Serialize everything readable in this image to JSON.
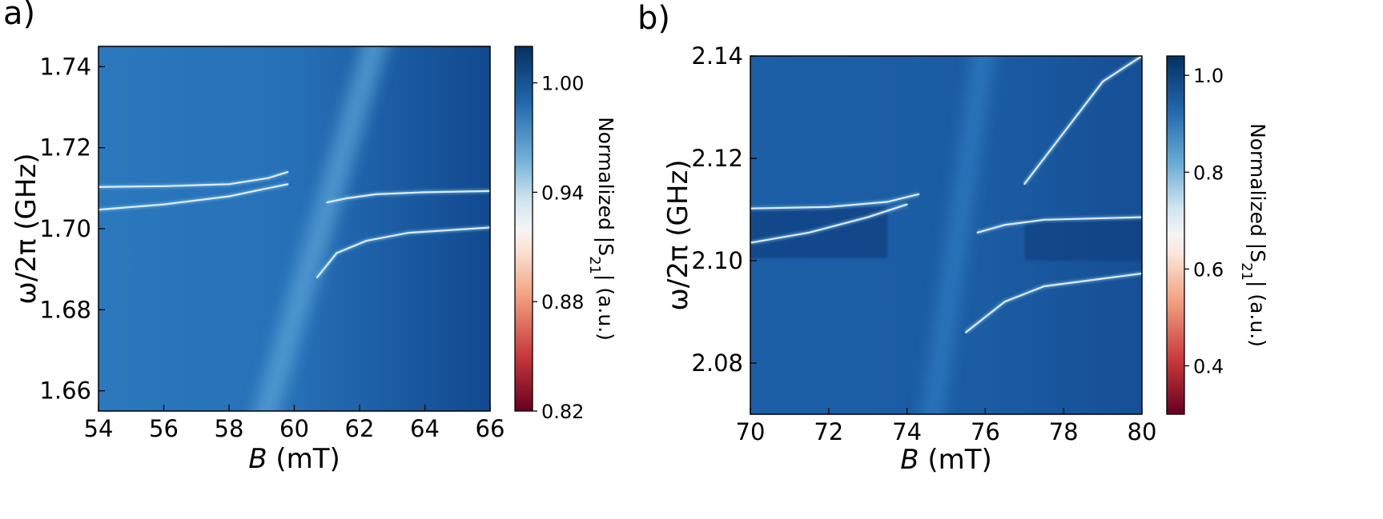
{
  "chart_data": [
    {
      "type": "heatmap",
      "panel_label": "a)",
      "xlabel_sym": "B",
      "xlabel_unit": " (mT)",
      "ylabel": "ω/2π (GHz)",
      "xlim": [
        54,
        66
      ],
      "ylim": [
        1.655,
        1.745
      ],
      "xticks": [
        "54",
        "56",
        "58",
        "60",
        "62",
        "64",
        "66"
      ],
      "xtick_values": [
        54,
        56,
        58,
        60,
        62,
        64,
        66
      ],
      "yticks": [
        "1.66",
        "1.68",
        "1.70",
        "1.72",
        "1.74"
      ],
      "ytick_values": [
        1.66,
        1.68,
        1.7,
        1.72,
        1.74
      ],
      "colorbar": {
        "label_prefix": "Normalized |S",
        "label_sub": "21",
        "label_suffix": "| (a.u.)",
        "range": [
          0.82,
          1.02
        ],
        "ticks": [
          "0.82",
          "0.88",
          "0.94",
          "1.00"
        ],
        "tick_values": [
          0.82,
          0.88,
          0.94,
          1.0
        ]
      },
      "features": {
        "magnon_line": {
          "b_at_bottom": 59.0,
          "b_at_top": 62.6
        },
        "upper_branch_left": {
          "b": [
            54,
            56,
            58,
            59.2,
            59.8
          ],
          "f": [
            1.7103,
            1.7105,
            1.711,
            1.7125,
            1.714
          ]
        },
        "lower_branch_left": {
          "b": [
            54,
            56,
            58,
            59.2,
            59.8
          ],
          "f": [
            1.7047,
            1.706,
            1.708,
            1.71,
            1.711
          ]
        },
        "upper_branch_right": {
          "b": [
            61.0,
            61.6,
            62.5,
            64,
            66
          ],
          "f": [
            1.7065,
            1.7075,
            1.7085,
            1.709,
            1.7093
          ]
        },
        "lower_branch_right": {
          "b": [
            60.7,
            61.3,
            62.2,
            63.5,
            66
          ],
          "f": [
            1.688,
            1.694,
            1.697,
            1.699,
            1.7003
          ]
        }
      }
    },
    {
      "type": "heatmap",
      "panel_label": "b)",
      "xlabel_sym": "B",
      "xlabel_unit": " (mT)",
      "ylabel": "ω/2π (GHz)",
      "xlim": [
        70,
        80
      ],
      "ylim": [
        2.07,
        2.14
      ],
      "xticks": [
        "70",
        "72",
        "74",
        "76",
        "78",
        "80"
      ],
      "xtick_values": [
        70,
        72,
        74,
        76,
        78,
        80
      ],
      "yticks": [
        "2.08",
        "2.10",
        "2.12",
        "2.14"
      ],
      "ytick_values": [
        2.08,
        2.1,
        2.12,
        2.14
      ],
      "colorbar": {
        "label_prefix": "Normalized |S",
        "label_sub": "21",
        "label_suffix": "| (a.u.)",
        "range": [
          0.3,
          1.04
        ],
        "ticks": [
          "0.4",
          "0.6",
          "0.8",
          "1.0"
        ],
        "tick_values": [
          0.4,
          0.6,
          0.8,
          1.0
        ]
      },
      "features": {
        "magnon_line": {
          "b_at_bottom": 74.6,
          "b_at_top": 76.0
        },
        "upper_branch_left": {
          "b": [
            70,
            72,
            73.5,
            74.3
          ],
          "f": [
            2.1102,
            2.1105,
            2.1115,
            2.113
          ]
        },
        "lower_branch_left": {
          "b": [
            70,
            71.5,
            73.0,
            74.0
          ],
          "f": [
            2.1035,
            2.1055,
            2.1085,
            2.111
          ]
        },
        "upper_branch_right": {
          "b": [
            75.8,
            76.5,
            77.5,
            80
          ],
          "f": [
            2.1055,
            2.107,
            2.108,
            2.1085
          ]
        },
        "lower_branch_right": {
          "b": [
            75.5,
            76.5,
            77.5,
            80
          ],
          "f": [
            2.086,
            2.092,
            2.095,
            2.0975
          ]
        },
        "upper_diagonal": {
          "b": [
            77.0,
            78.0,
            79.0,
            80
          ],
          "f": [
            2.115,
            2.125,
            2.135,
            2.14
          ]
        }
      }
    }
  ]
}
